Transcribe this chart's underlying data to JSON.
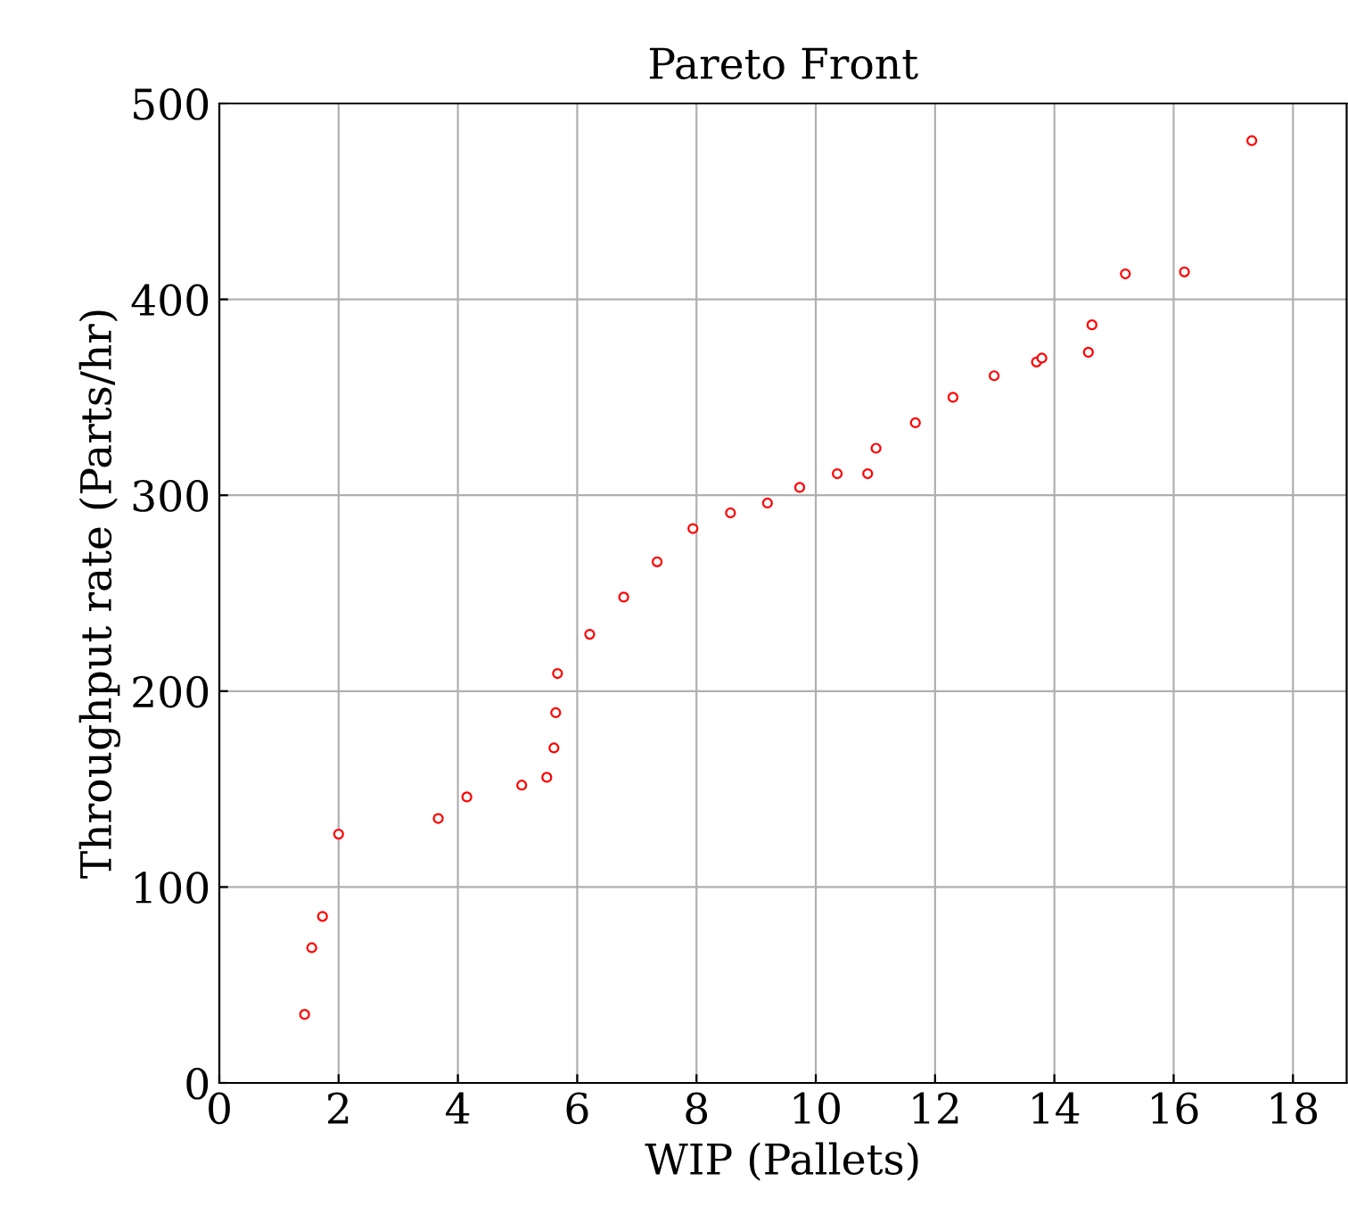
{
  "chart_data": {
    "type": "scatter",
    "title": "Pareto Front",
    "xlabel": "WIP (Pallets)",
    "ylabel": "Throughput rate (Parts/hr)",
    "x": [
      1.43,
      1.55,
      1.73,
      2.0,
      3.67,
      4.15,
      5.07,
      5.49,
      5.61,
      5.64,
      5.67,
      6.21,
      6.78,
      7.34,
      7.94,
      8.57,
      9.19,
      9.73,
      10.36,
      10.87,
      11.01,
      11.67,
      12.3,
      12.99,
      13.7,
      13.79,
      14.57,
      14.63,
      15.19,
      16.18,
      17.31
    ],
    "series": [
      {
        "color": "#ff0000",
        "values": [
          35,
          69,
          85,
          127,
          135,
          146,
          152,
          156,
          171,
          189,
          209,
          229,
          248,
          266,
          283,
          291,
          296,
          304,
          311,
          311,
          324,
          337,
          350,
          361,
          368,
          370,
          373,
          387,
          413,
          414,
          481
        ]
      }
    ],
    "xlim": [
      0,
      18.9
    ],
    "xticks": [
      0,
      2,
      4,
      6,
      8,
      10,
      12,
      14,
      16,
      18
    ],
    "ylim": [
      0,
      500
    ],
    "yticks": [
      0,
      100,
      200,
      300,
      400,
      500
    ],
    "grid": true,
    "marker": "circle"
  }
}
